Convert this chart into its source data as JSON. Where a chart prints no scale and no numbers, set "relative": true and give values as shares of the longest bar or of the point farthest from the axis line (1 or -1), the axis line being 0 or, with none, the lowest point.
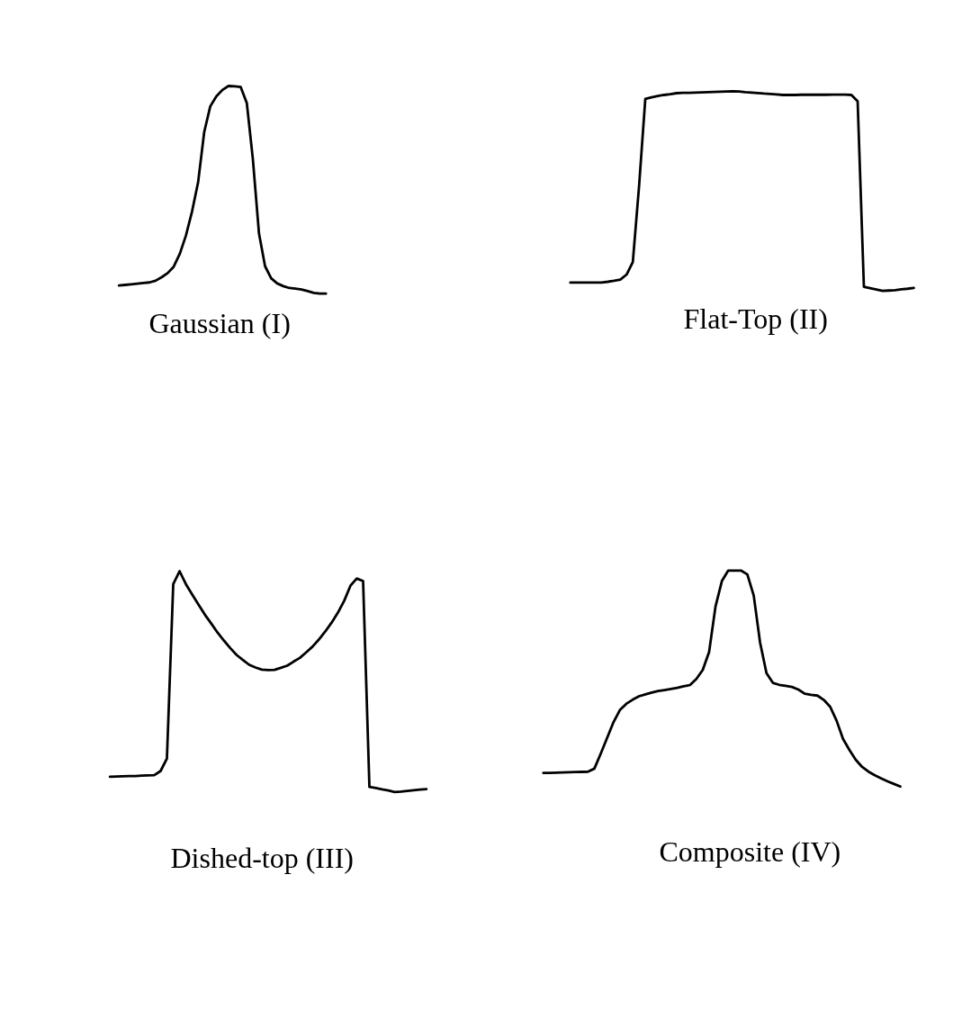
{
  "chart_data": [
    {
      "type": "line",
      "title": "Gaussian (I)",
      "relative": true,
      "categories": [
        null,
        null,
        null,
        null,
        null,
        null,
        null,
        null,
        null,
        null,
        null,
        null,
        null,
        null,
        null,
        null,
        null,
        null,
        null,
        null,
        null,
        null,
        null,
        null,
        null,
        null,
        null,
        null,
        null,
        null,
        null,
        null,
        null,
        null,
        null
      ],
      "series": [
        {
          "color": "#000000",
          "values": [
            0.039,
            0.042,
            0.045,
            0.048,
            0.051,
            0.054,
            0.062,
            0.079,
            0.099,
            0.13,
            0.192,
            0.28,
            0.395,
            0.536,
            0.778,
            0.902,
            0.95,
            0.981,
            1.0,
            0.998,
            0.995,
            0.918,
            0.646,
            0.29,
            0.132,
            0.074,
            0.049,
            0.036,
            0.027,
            0.024,
            0.02,
            0.012,
            0.004,
            0,
            0
          ]
        }
      ]
    },
    {
      "type": "line",
      "title": "Flat-Top (II)",
      "relative": true,
      "categories": [
        null,
        null,
        null,
        null,
        null,
        null,
        null,
        null,
        null,
        null,
        null,
        null,
        null,
        null,
        null,
        null,
        null,
        null,
        null,
        null,
        null,
        null,
        null,
        null,
        null,
        null,
        null,
        null,
        null,
        null,
        null,
        null,
        null,
        null,
        null,
        null,
        null,
        null,
        null,
        null,
        null,
        null,
        null,
        null,
        null,
        null,
        null,
        null,
        null,
        null,
        null,
        null,
        null,
        null,
        null,
        null
      ],
      "series": [
        {
          "color": "#000000",
          "values": [
            0.042,
            0.042,
            0.042,
            0.042,
            0.042,
            0.042,
            0.046,
            0.051,
            0.057,
            0.082,
            0.145,
            0.525,
            0.962,
            0.97,
            0.977,
            0.982,
            0.986,
            0.991,
            0.993,
            0.993,
            0.994,
            0.995,
            0.996,
            0.997,
            0.998,
            0.999,
            1.0,
            0.999,
            0.996,
            0.994,
            0.992,
            0.989,
            0.987,
            0.985,
            0.982,
            0.982,
            0.982,
            0.983,
            0.983,
            0.983,
            0.983,
            0.983,
            0.984,
            0.984,
            0.984,
            0.982,
            0.95,
            0.021,
            0.014,
            0.007,
            0,
            0.002,
            0.004,
            0.008,
            0.011,
            0.015
          ]
        }
      ]
    },
    {
      "type": "line",
      "title": "Dished-top (III)",
      "relative": true,
      "categories": [
        null,
        null,
        null,
        null,
        null,
        null,
        null,
        null,
        null,
        null,
        null,
        null,
        null,
        null,
        null,
        null,
        null,
        null,
        null,
        null,
        null,
        null,
        null,
        null,
        null,
        null,
        null,
        null,
        null,
        null,
        null,
        null,
        null,
        null,
        null,
        null,
        null,
        null,
        null,
        null,
        null,
        null,
        null,
        null,
        null,
        null,
        null,
        null,
        null,
        null,
        null
      ],
      "series": [
        {
          "color": "#000000",
          "values": [
            0.069,
            0.07,
            0.071,
            0.072,
            0.072,
            0.074,
            0.075,
            0.076,
            0.095,
            0.152,
            0.941,
            1.0,
            0.941,
            0.894,
            0.848,
            0.803,
            0.763,
            0.722,
            0.686,
            0.652,
            0.621,
            0.598,
            0.576,
            0.564,
            0.554,
            0.552,
            0.553,
            0.562,
            0.572,
            0.59,
            0.607,
            0.632,
            0.658,
            0.69,
            0.726,
            0.766,
            0.811,
            0.865,
            0.934,
            0.967,
            0.955,
            0.023,
            0.018,
            0.012,
            0.007,
            0,
            0.002,
            0.005,
            0.008,
            0.011,
            0.013
          ]
        }
      ]
    },
    {
      "type": "line",
      "title": "Composite (IV)",
      "relative": true,
      "categories": [
        null,
        null,
        null,
        null,
        null,
        null,
        null,
        null,
        null,
        null,
        null,
        null,
        null,
        null,
        null,
        null,
        null,
        null,
        null,
        null,
        null,
        null,
        null,
        null,
        null,
        null,
        null,
        null,
        null,
        null,
        null,
        null,
        null,
        null,
        null,
        null,
        null,
        null,
        null,
        null,
        null,
        null,
        null,
        null,
        null,
        null,
        null,
        null,
        null,
        null,
        null,
        null,
        null,
        null,
        null,
        null,
        null
      ],
      "series": [
        {
          "color": "#000000",
          "values": [
            0.063,
            0.063,
            0.064,
            0.065,
            0.066,
            0.067,
            0.068,
            0.069,
            0.083,
            0.152,
            0.225,
            0.298,
            0.354,
            0.383,
            0.402,
            0.418,
            0.427,
            0.435,
            0.442,
            0.447,
            0.452,
            0.457,
            0.464,
            0.47,
            0.498,
            0.54,
            0.623,
            0.833,
            0.951,
            1.0,
            1.0,
            1.0,
            0.982,
            0.884,
            0.666,
            0.525,
            0.48,
            0.471,
            0.466,
            0.461,
            0.449,
            0.43,
            0.425,
            0.421,
            0.401,
            0.369,
            0.305,
            0.221,
            0.17,
            0.124,
            0.091,
            0.069,
            0.052,
            0.038,
            0.024,
            0.012,
            0
          ]
        }
      ]
    }
  ]
}
